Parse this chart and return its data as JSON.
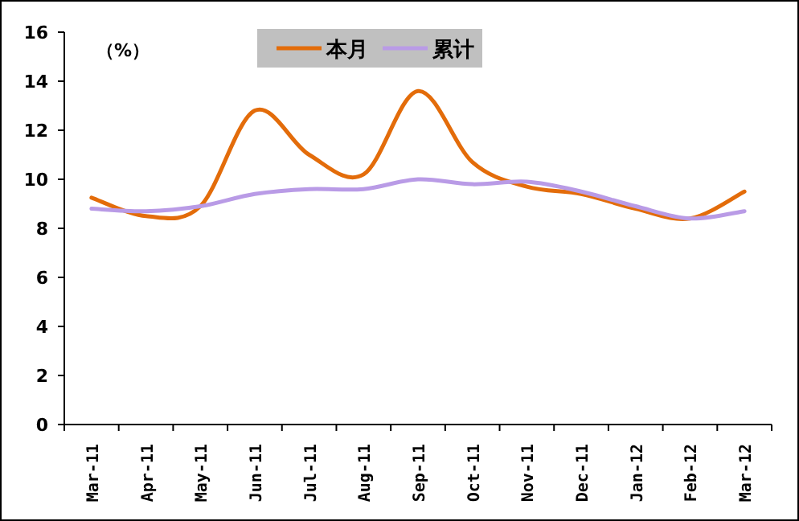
{
  "chart_data": {
    "type": "line",
    "ylabel": "（%）",
    "categories": [
      "Mar-11",
      "Apr-11",
      "May-11",
      "Jun-11",
      "Jul-11",
      "Aug-11",
      "Sep-11",
      "Oct-11",
      "Nov-11",
      "Dec-11",
      "Jan-12",
      "Feb-12",
      "Mar-12"
    ],
    "series": [
      {
        "name": "本月",
        "color": "#e36c0a",
        "values": [
          9.25,
          8.5,
          8.9,
          12.8,
          11.0,
          10.2,
          13.6,
          10.7,
          9.7,
          9.4,
          8.8,
          8.4,
          9.5
        ]
      },
      {
        "name": "累计",
        "color": "#b99be6",
        "values": [
          8.8,
          8.7,
          8.9,
          9.4,
          9.6,
          9.6,
          10.0,
          9.8,
          9.9,
          9.5,
          8.9,
          8.4,
          8.7
        ]
      }
    ],
    "ylim": [
      0,
      16
    ],
    "yticks": [
      0,
      2,
      4,
      6,
      8,
      10,
      12,
      14,
      16
    ],
    "grid": false,
    "legend": "top",
    "marker": "none",
    "line_style": "solid"
  }
}
